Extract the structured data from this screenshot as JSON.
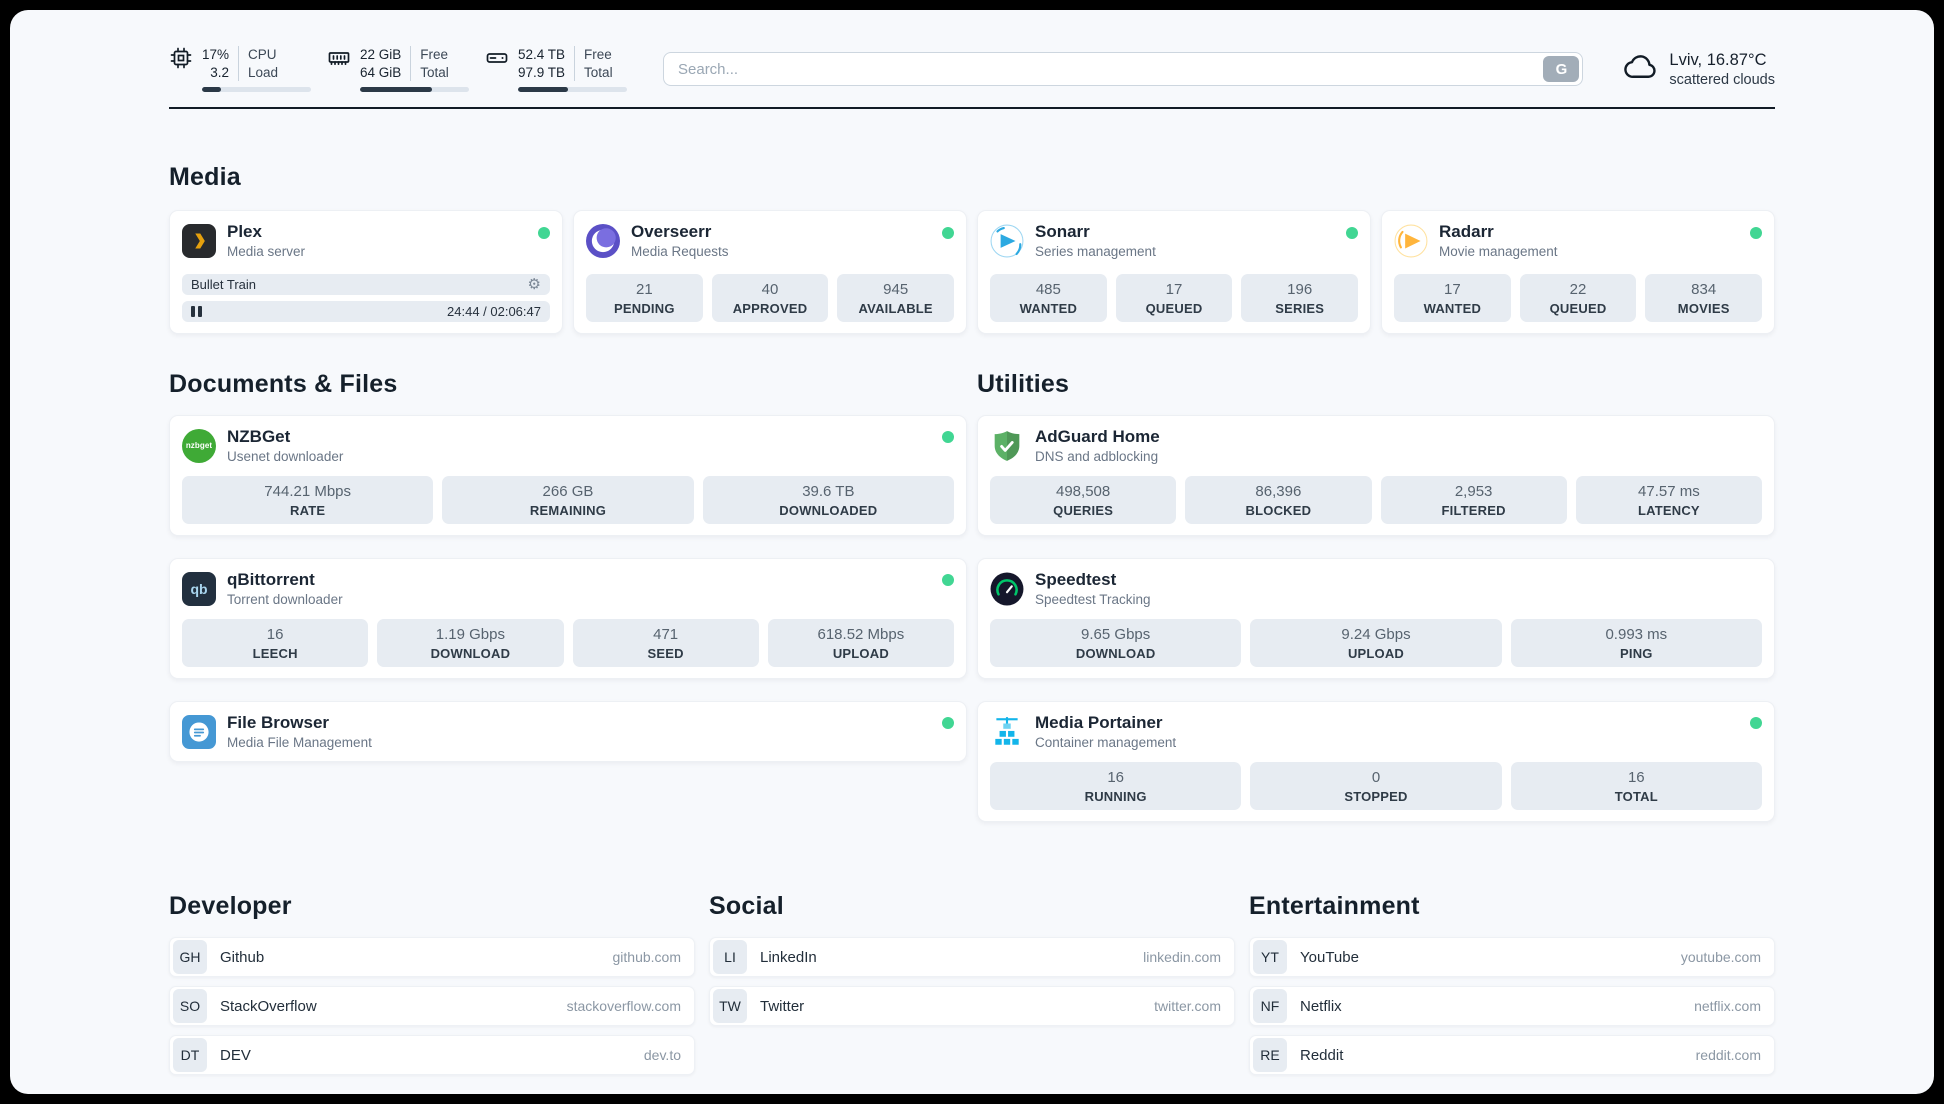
{
  "colors": {
    "status_online": "#41d693"
  },
  "icons": {
    "gear_glyph": "⚙",
    "nzbget_text": "nzbget",
    "qbittorrent_text": "qb"
  },
  "header": {
    "resources": {
      "cpu": {
        "val1": "17%",
        "val2": "3.2",
        "lab1": "CPU",
        "lab2": "Load",
        "progress": 17
      },
      "memory": {
        "val1": "22 GiB",
        "val2": "64 GiB",
        "lab1": "Free",
        "lab2": "Total",
        "progress": 66
      },
      "disk": {
        "val1": "52.4 TB",
        "val2": "97.9 TB",
        "lab1": "Free",
        "lab2": "Total",
        "progress": 46
      }
    },
    "search": {
      "placeholder": "Search...",
      "button_label": "G"
    },
    "weather": {
      "location": "Lviv, 16.87°C",
      "condition": "scattered clouds"
    }
  },
  "media": {
    "heading": "Media",
    "plex": {
      "title": "Plex",
      "subtitle": "Media server",
      "status": "online",
      "now_playing": {
        "title": "Bullet Train",
        "time_display": "24:44 / 02:06:47"
      }
    },
    "overseerr": {
      "title": "Overseerr",
      "subtitle": "Media Requests",
      "status": "online",
      "stats": [
        {
          "value": "21",
          "label": "PENDING"
        },
        {
          "value": "40",
          "label": "APPROVED"
        },
        {
          "value": "945",
          "label": "AVAILABLE"
        }
      ]
    },
    "sonarr": {
      "title": "Sonarr",
      "subtitle": "Series management",
      "status": "online",
      "stats": [
        {
          "value": "485",
          "label": "WANTED"
        },
        {
          "value": "17",
          "label": "QUEUED"
        },
        {
          "value": "196",
          "label": "SERIES"
        }
      ]
    },
    "radarr": {
      "title": "Radarr",
      "subtitle": "Movie management",
      "status": "online",
      "stats": [
        {
          "value": "17",
          "label": "WANTED"
        },
        {
          "value": "22",
          "label": "QUEUED"
        },
        {
          "value": "834",
          "label": "MOVIES"
        }
      ]
    }
  },
  "documents": {
    "heading": "Documents & Files",
    "nzbget": {
      "title": "NZBGet",
      "subtitle": "Usenet downloader",
      "status": "online",
      "stats": [
        {
          "value": "744.21 Mbps",
          "label": "RATE"
        },
        {
          "value": "266 GB",
          "label": "REMAINING"
        },
        {
          "value": "39.6 TB",
          "label": "DOWNLOADED"
        }
      ]
    },
    "qbittorrent": {
      "title": "qBittorrent",
      "subtitle": "Torrent downloader",
      "status": "online",
      "stats": [
        {
          "value": "16",
          "label": "LEECH"
        },
        {
          "value": "1.19 Gbps",
          "label": "DOWNLOAD"
        },
        {
          "value": "471",
          "label": "SEED"
        },
        {
          "value": "618.52 Mbps",
          "label": "UPLOAD"
        }
      ]
    },
    "filebrowser": {
      "title": "File Browser",
      "subtitle": "Media File Management",
      "status": "online"
    }
  },
  "utilities": {
    "heading": "Utilities",
    "adguard": {
      "title": "AdGuard Home",
      "subtitle": "DNS and adblocking",
      "stats": [
        {
          "value": "498,508",
          "label": "QUERIES"
        },
        {
          "value": "86,396",
          "label": "BLOCKED"
        },
        {
          "value": "2,953",
          "label": "FILTERED"
        },
        {
          "value": "47.57 ms",
          "label": "LATENCY"
        }
      ]
    },
    "speedtest": {
      "title": "Speedtest",
      "subtitle": "Speedtest Tracking",
      "stats": [
        {
          "value": "9.65 Gbps",
          "label": "DOWNLOAD"
        },
        {
          "value": "9.24 Gbps",
          "label": "UPLOAD"
        },
        {
          "value": "0.993 ms",
          "label": "PING"
        }
      ]
    },
    "portainer": {
      "title": "Media Portainer",
      "subtitle": "Container management",
      "status": "online",
      "stats": [
        {
          "value": "16",
          "label": "RUNNING"
        },
        {
          "value": "0",
          "label": "STOPPED"
        },
        {
          "value": "16",
          "label": "TOTAL"
        }
      ]
    }
  },
  "bookmarks": {
    "developer": {
      "heading": "Developer",
      "items": [
        {
          "abbr": "GH",
          "name": "Github",
          "domain": "github.com"
        },
        {
          "abbr": "SO",
          "name": "StackOverflow",
          "domain": "stackoverflow.com"
        },
        {
          "abbr": "DT",
          "name": "DEV",
          "domain": "dev.to"
        }
      ]
    },
    "social": {
      "heading": "Social",
      "items": [
        {
          "abbr": "LI",
          "name": "LinkedIn",
          "domain": "linkedin.com"
        },
        {
          "abbr": "TW",
          "name": "Twitter",
          "domain": "twitter.com"
        }
      ]
    },
    "entertainment": {
      "heading": "Entertainment",
      "items": [
        {
          "abbr": "YT",
          "name": "YouTube",
          "domain": "youtube.com"
        },
        {
          "abbr": "NF",
          "name": "Netflix",
          "domain": "netflix.com"
        },
        {
          "abbr": "RE",
          "name": "Reddit",
          "domain": "reddit.com"
        }
      ]
    }
  }
}
